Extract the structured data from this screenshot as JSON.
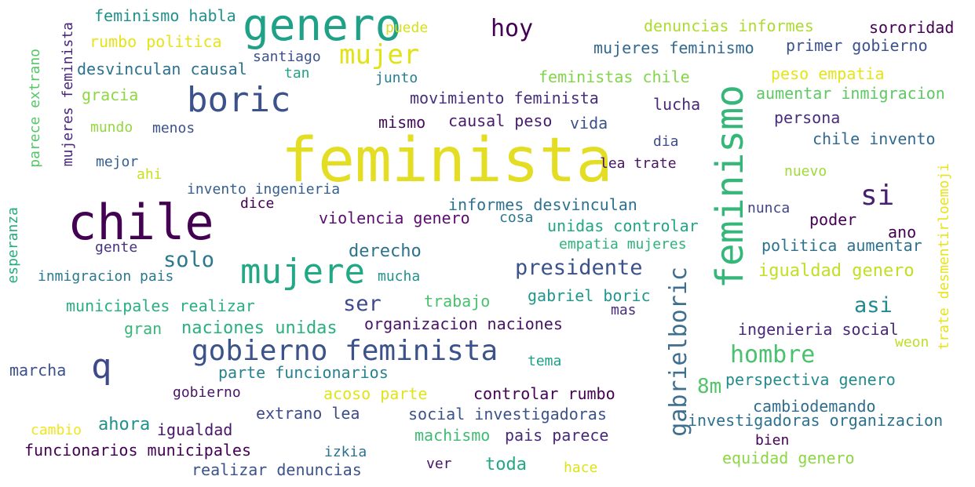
{
  "colors": {
    "background": "#ffffff",
    "palette": [
      "#440154",
      "#3b528b",
      "#21918c",
      "#5ec962",
      "#fde725"
    ]
  },
  "words": [
    {
      "text": "feminista",
      "color": "#e3de23"
    },
    {
      "text": "chile",
      "color": "#440154"
    },
    {
      "text": "genero",
      "color": "#1fa187"
    },
    {
      "text": "boric",
      "color": "#3b528b"
    },
    {
      "text": "mujere",
      "color": "#22a884"
    },
    {
      "text": "feminismo",
      "color": "#35b779"
    },
    {
      "text": "gobierno feminista",
      "color": "#3b528b"
    },
    {
      "text": "gabrielboric",
      "color": "#3e6f8e"
    },
    {
      "text": "mujer",
      "color": "#dfe318"
    },
    {
      "text": "q",
      "color": "#3e4a89"
    },
    {
      "text": "si",
      "color": "#482071"
    },
    {
      "text": "hoy",
      "color": "#440154"
    },
    {
      "text": "hombre",
      "color": "#4ac16d"
    },
    {
      "text": "presidente",
      "color": "#3b528b"
    },
    {
      "text": "solo",
      "color": "#2a788e"
    },
    {
      "text": "asi",
      "color": "#238a8d"
    },
    {
      "text": "ser",
      "color": "#3e4a89"
    },
    {
      "text": "derecho",
      "color": "#2c728e"
    },
    {
      "text": "igualdad genero",
      "color": "#c2df23"
    },
    {
      "text": "8m",
      "color": "#52c569"
    },
    {
      "text": "mujeres feminista",
      "color": "#482677"
    },
    {
      "text": "parece extrano",
      "color": "#56c667"
    },
    {
      "text": "esperanza",
      "color": "#25ab82"
    },
    {
      "text": "trate desmentirloemoji",
      "color": "#e7e419"
    },
    {
      "text": "feminismo habla",
      "color": "#21918c"
    },
    {
      "text": "rumbo politica",
      "color": "#e6e419"
    },
    {
      "text": "puede",
      "color": "#d8e219"
    },
    {
      "text": "denuncias informes",
      "color": "#addc30"
    },
    {
      "text": "sororidad",
      "color": "#440154"
    },
    {
      "text": "mujeres feminismo",
      "color": "#31688e"
    },
    {
      "text": "primer gobierno",
      "color": "#3b528b"
    },
    {
      "text": "santiago",
      "color": "#3b528b"
    },
    {
      "text": "desvinculan causal",
      "color": "#2c718e"
    },
    {
      "text": "tan",
      "color": "#20a386"
    },
    {
      "text": "junto",
      "color": "#27808e"
    },
    {
      "text": "feministas chile",
      "color": "#84d44b"
    },
    {
      "text": "peso empatia",
      "color": "#e5e419"
    },
    {
      "text": "gracia",
      "color": "#8fd744"
    },
    {
      "text": "movimiento feminista",
      "color": "#472f7d"
    },
    {
      "text": "lucha",
      "color": "#482878"
    },
    {
      "text": "aumentar inmigracion",
      "color": "#5ec962"
    },
    {
      "text": "mundo",
      "color": "#93d741"
    },
    {
      "text": "menos",
      "color": "#3b528b"
    },
    {
      "text": "mismo",
      "color": "#460b5e"
    },
    {
      "text": "causal peso",
      "color": "#481b6d"
    },
    {
      "text": "vida",
      "color": "#3b528b"
    },
    {
      "text": "persona",
      "color": "#472d7b"
    },
    {
      "text": "dia",
      "color": "#3e4c8a"
    },
    {
      "text": "chile invento",
      "color": "#31688e"
    },
    {
      "text": "mejor",
      "color": "#355f8d"
    },
    {
      "text": "ahi",
      "color": "#c8e020"
    },
    {
      "text": "lea trate",
      "color": "#481467"
    },
    {
      "text": "nuevo",
      "color": "#a0da39"
    },
    {
      "text": "invento ingenieria",
      "color": "#355f8d"
    },
    {
      "text": "dice",
      "color": "#440154"
    },
    {
      "text": "informes desvinculan",
      "color": "#2c718e"
    },
    {
      "text": "nunca",
      "color": "#414487"
    },
    {
      "text": "violencia genero",
      "color": "#5a0d6f"
    },
    {
      "text": "cosa",
      "color": "#2a788e"
    },
    {
      "text": "unidas controlar",
      "color": "#21a685"
    },
    {
      "text": "poder",
      "color": "#440154"
    },
    {
      "text": "ano",
      "color": "#440154"
    },
    {
      "text": "gente",
      "color": "#46337f"
    },
    {
      "text": "empatia mujeres",
      "color": "#2eb37c"
    },
    {
      "text": "politica aumentar",
      "color": "#2c728e"
    },
    {
      "text": "inmigracion pais",
      "color": "#2a788e"
    },
    {
      "text": "mucha",
      "color": "#21918c"
    },
    {
      "text": "municipales realizar",
      "color": "#29af7f"
    },
    {
      "text": "trabajo",
      "color": "#4ac16d"
    },
    {
      "text": "gabriel boric",
      "color": "#1f988b"
    },
    {
      "text": "mas",
      "color": "#472d7b"
    },
    {
      "text": "gran",
      "color": "#35b779"
    },
    {
      "text": "naciones unidas",
      "color": "#2ab07f"
    },
    {
      "text": "organizacion naciones",
      "color": "#471365"
    },
    {
      "text": "ingenieria social",
      "color": "#482878"
    },
    {
      "text": "weon",
      "color": "#bddf26"
    },
    {
      "text": "marcha",
      "color": "#3b528b"
    },
    {
      "text": "parte funcionarios",
      "color": "#26828e"
    },
    {
      "text": "tema",
      "color": "#1fa088"
    },
    {
      "text": "perspectiva genero",
      "color": "#238a8d"
    },
    {
      "text": "gobierno",
      "color": "#481467"
    },
    {
      "text": "acoso parte",
      "color": "#e1e418"
    },
    {
      "text": "controlar rumbo",
      "color": "#440154"
    },
    {
      "text": "cambiodemando",
      "color": "#2f6c8e"
    },
    {
      "text": "extrano lea",
      "color": "#3e4a89"
    },
    {
      "text": "social investigadoras",
      "color": "#3b528b"
    },
    {
      "text": "investigadoras organizacion",
      "color": "#2c728e"
    },
    {
      "text": "cambio",
      "color": "#f1e51d"
    },
    {
      "text": "ahora",
      "color": "#21918c"
    },
    {
      "text": "igualdad",
      "color": "#481668"
    },
    {
      "text": "machismo",
      "color": "#3ebc73"
    },
    {
      "text": "pais parece",
      "color": "#482878"
    },
    {
      "text": "bien",
      "color": "#440154"
    },
    {
      "text": "funcionarios municipales",
      "color": "#440154"
    },
    {
      "text": "izkia",
      "color": "#2c728e"
    },
    {
      "text": "equidad genero",
      "color": "#8ed645"
    },
    {
      "text": "realizar denuncias",
      "color": "#3b528b"
    },
    {
      "text": "ver",
      "color": "#481668"
    },
    {
      "text": "toda",
      "color": "#22a884"
    },
    {
      "text": "hace",
      "color": "#dde318"
    }
  ]
}
